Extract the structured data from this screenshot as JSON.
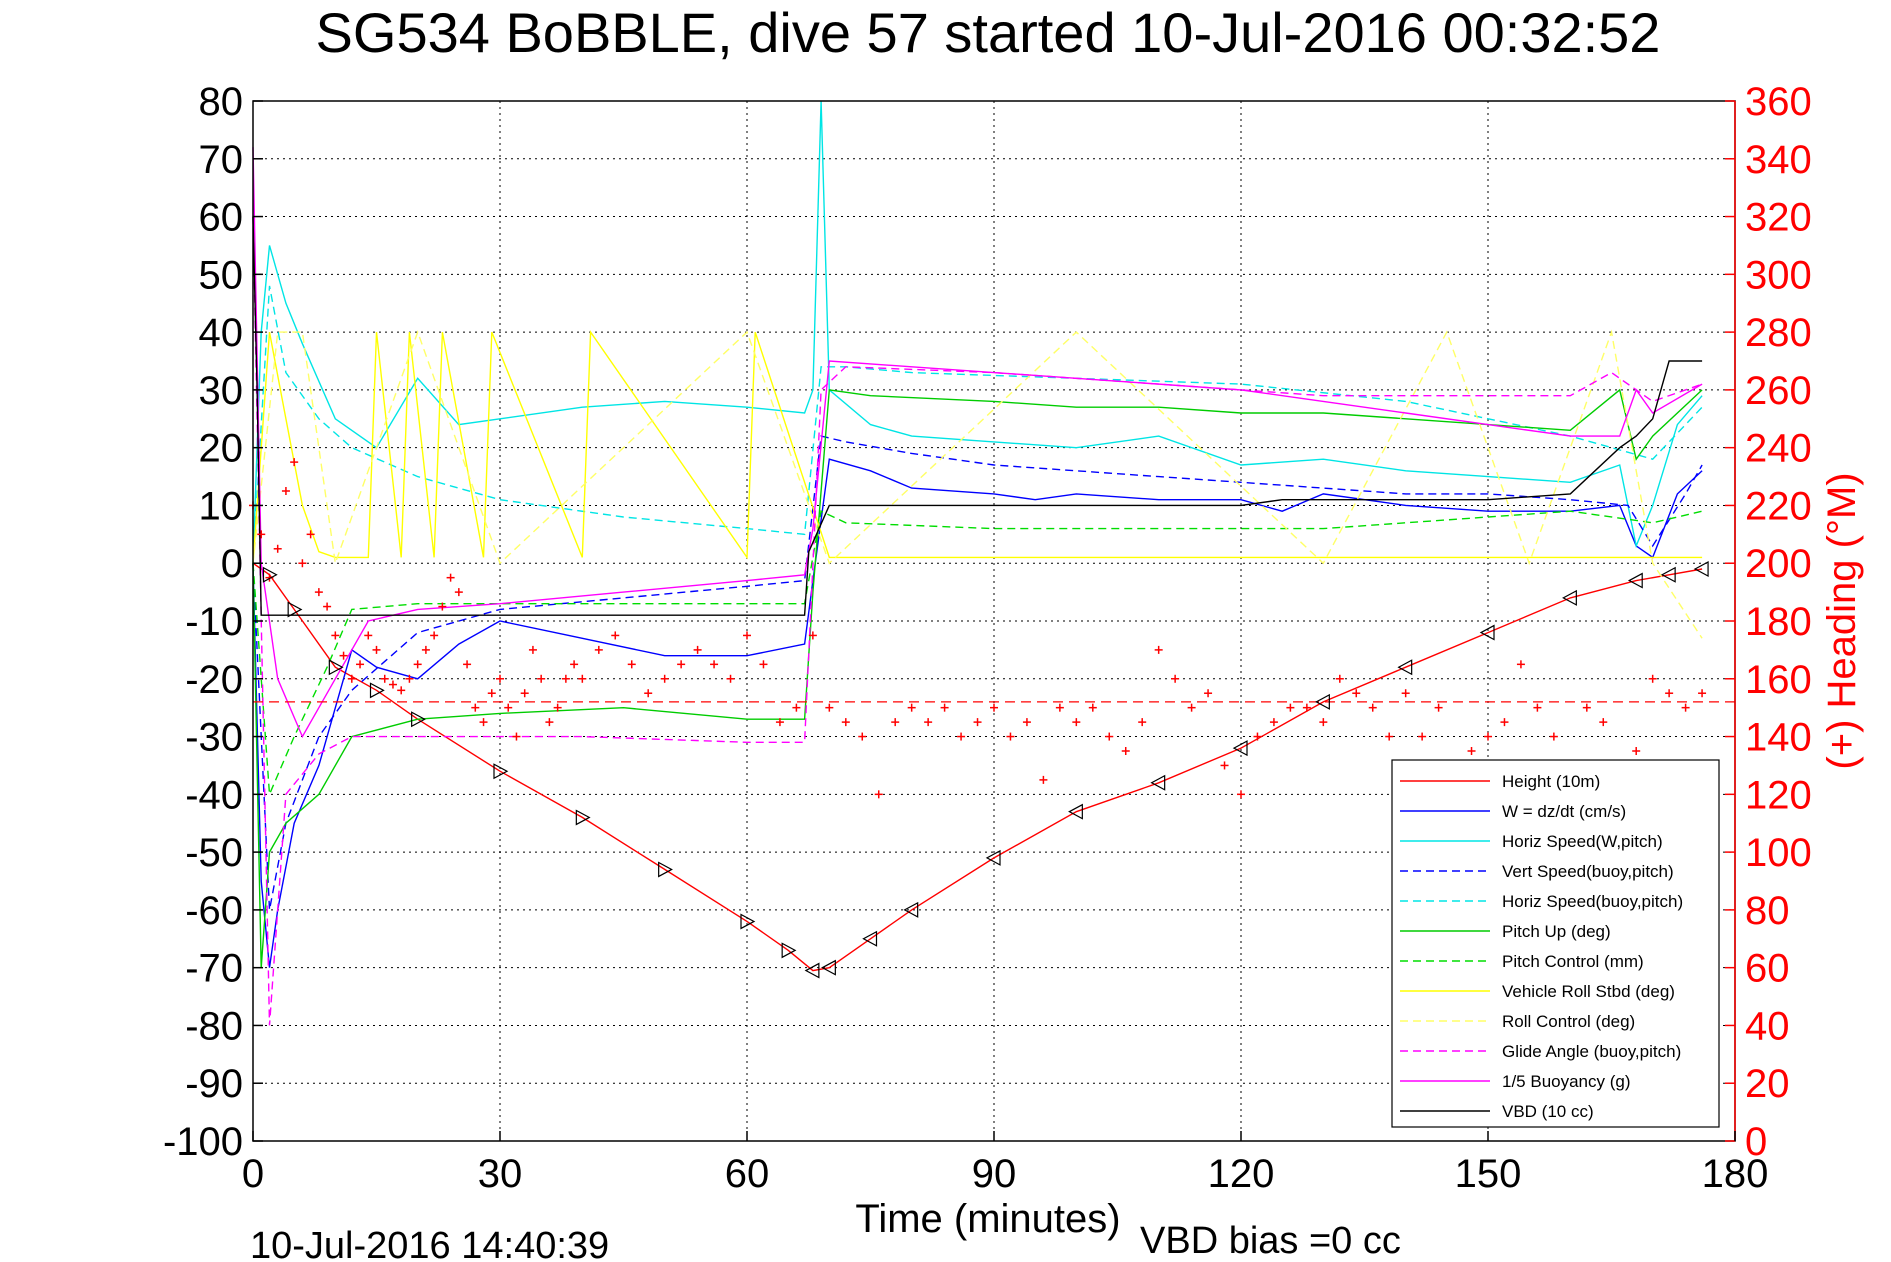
{
  "chart_data": {
    "type": "line",
    "title": "SG534 BoBBLE, dive 57 started 10-Jul-2016 00:32:52",
    "xlabel": "Time (minutes)",
    "ylabel_right": "(+) Heading (°M)",
    "xlim": [
      0,
      180
    ],
    "ylim": [
      -100,
      80
    ],
    "ylim_right": [
      0,
      360
    ],
    "x_ticks": [
      "0",
      "30",
      "60",
      "90",
      "120",
      "150",
      "180"
    ],
    "y_ticks": [
      "80",
      "70",
      "60",
      "50",
      "40",
      "30",
      "20",
      "10",
      "0",
      "-10",
      "-20",
      "-30",
      "-40",
      "-50",
      "-60",
      "-70",
      "-80",
      "-90",
      "-100"
    ],
    "y_ticks_right": [
      "360",
      "340",
      "320",
      "300",
      "280",
      "260",
      "240",
      "220",
      "200",
      "180",
      "160",
      "140",
      "120",
      "100",
      "80",
      "60",
      "40",
      "20",
      "0"
    ],
    "grid": true,
    "legend_position": "bottom-right",
    "footer_left": "10-Jul-2016 14:40:39",
    "footer_right": "VBD bias =0 cc",
    "reference_heading": 152,
    "series": [
      {
        "name": "Height (10m)",
        "color": "#ff0000",
        "dash": "solid",
        "x": [
          0,
          2,
          5,
          10,
          15,
          20,
          30,
          40,
          50,
          60,
          65,
          68,
          70,
          75,
          80,
          90,
          100,
          110,
          120,
          130,
          140,
          150,
          160,
          168,
          172,
          176
        ],
        "y": [
          0,
          -2,
          -8,
          -18,
          -22,
          -27,
          -36,
          -44,
          -53,
          -62,
          -67,
          -70.5,
          -70,
          -65,
          -60,
          -51,
          -43,
          -38,
          -32,
          -24,
          -18,
          -12,
          -6,
          -3,
          -2,
          -1
        ]
      },
      {
        "name": "W = dz/dt (cm/s)",
        "color": "#0000ff",
        "dash": "solid",
        "x": [
          0,
          1,
          2,
          3,
          5,
          8,
          12,
          15,
          20,
          25,
          30,
          40,
          50,
          60,
          67,
          68,
          70,
          75,
          80,
          90,
          95,
          100,
          110,
          120,
          125,
          130,
          140,
          150,
          160,
          166,
          168,
          170,
          173,
          176
        ],
        "y": [
          0,
          -55,
          -70,
          -60,
          -45,
          -35,
          -15,
          -18,
          -20,
          -14,
          -10,
          -13,
          -16,
          -16,
          -14,
          -3,
          18,
          16,
          13,
          12,
          11,
          12,
          11,
          11,
          9,
          12,
          10,
          9,
          9,
          10,
          3,
          1,
          12,
          16
        ]
      },
      {
        "name": "Horiz Speed(W,pitch)",
        "color": "#00e5e5",
        "dash": "solid",
        "x": [
          0,
          1,
          2,
          4,
          6,
          10,
          15,
          20,
          25,
          30,
          40,
          50,
          60,
          67,
          68,
          69,
          70,
          75,
          80,
          90,
          100,
          110,
          120,
          130,
          140,
          150,
          160,
          166,
          168,
          170,
          173,
          176
        ],
        "y": [
          0,
          40,
          55,
          45,
          38,
          25,
          20,
          32,
          24,
          25,
          27,
          28,
          27,
          26,
          30,
          80,
          30,
          24,
          22,
          21,
          20,
          22,
          17,
          18,
          16,
          15,
          14,
          17,
          3,
          10,
          24,
          29
        ]
      },
      {
        "name": "Vert Speed(buoy,pitch)",
        "color": "#0000ff",
        "dash": "dashed",
        "x": [
          0,
          2,
          4,
          8,
          12,
          20,
          30,
          45,
          60,
          67,
          69,
          72,
          80,
          90,
          100,
          110,
          120,
          130,
          140,
          150,
          160,
          167,
          170,
          174,
          176
        ],
        "y": [
          0,
          -60,
          -45,
          -30,
          -22,
          -12,
          -8,
          -6,
          -4,
          -3,
          22,
          21,
          19,
          17,
          16,
          15,
          14,
          13,
          12,
          12,
          11,
          10,
          3,
          12,
          17
        ]
      },
      {
        "name": "Horiz Speed(buoy,pitch)",
        "color": "#00e5e5",
        "dash": "dashed",
        "x": [
          0,
          2,
          4,
          8,
          12,
          20,
          30,
          45,
          60,
          67,
          69,
          72,
          80,
          100,
          120,
          140,
          160,
          170,
          176
        ],
        "y": [
          0,
          48,
          33,
          25,
          20,
          15,
          11,
          8,
          6,
          5,
          34,
          34,
          33,
          32,
          31,
          28,
          22,
          18,
          27
        ]
      },
      {
        "name": "Pitch Up (deg)",
        "color": "#00cc00",
        "dash": "solid",
        "x": [
          0,
          1,
          2,
          4,
          8,
          12,
          20,
          30,
          45,
          60,
          67,
          68,
          70,
          75,
          90,
          100,
          110,
          120,
          130,
          140,
          150,
          160,
          166,
          168,
          170,
          176
        ],
        "y": [
          0,
          -70,
          -50,
          -45,
          -40,
          -30,
          -27,
          -26,
          -25,
          -27,
          -27,
          -5,
          30,
          29,
          28,
          27,
          27,
          26,
          26,
          25,
          24,
          23,
          30,
          18,
          22,
          30
        ]
      },
      {
        "name": "Pitch Control (mm)",
        "color": "#00dd00",
        "dash": "dashed",
        "x": [
          0,
          2,
          5,
          9,
          12,
          20,
          40,
          60,
          67,
          69,
          72,
          90,
          110,
          130,
          150,
          160,
          170,
          176
        ],
        "y": [
          0,
          -40,
          -30,
          -18,
          -8,
          -7,
          -7,
          -7,
          -7,
          9,
          7,
          6,
          6,
          6,
          8,
          9,
          7,
          9
        ]
      },
      {
        "name": "Vehicle Roll Stbd (deg)",
        "color": "#ffff00",
        "dash": "solid",
        "x": [
          0,
          2,
          4,
          6,
          8,
          10,
          14,
          15,
          18,
          19,
          22,
          23,
          28,
          29,
          40,
          41,
          60,
          61,
          70,
          80,
          90,
          100,
          110,
          120,
          140,
          150,
          160,
          170,
          176
        ],
        "y": [
          0,
          40,
          25,
          10,
          2,
          1,
          1,
          40,
          1,
          40,
          1,
          40,
          1,
          40,
          1,
          40,
          1,
          40,
          1,
          1,
          1,
          1,
          1,
          1,
          1,
          1,
          1,
          1,
          1
        ]
      },
      {
        "name": "Roll Control (deg)",
        "color": "#ffff66",
        "dash": "dashed",
        "x": [
          0,
          3,
          6,
          10,
          20,
          30,
          60,
          70,
          100,
          130,
          145,
          155,
          165,
          170,
          176
        ],
        "y": [
          0,
          40,
          40,
          0,
          40,
          0,
          40,
          0,
          40,
          0,
          40,
          0,
          40,
          0,
          -13
        ]
      },
      {
        "name": "Glide Angle (buoy,pitch)",
        "color": "#ff00ff",
        "dash": "dashed",
        "x": [
          0,
          2,
          4,
          8,
          12,
          20,
          40,
          60,
          67,
          69,
          72,
          90,
          110,
          130,
          150,
          160,
          165,
          170,
          176
        ],
        "y": [
          60,
          -80,
          -40,
          -33,
          -30,
          -30,
          -30,
          -31,
          -31,
          30,
          34,
          33,
          31,
          29,
          29,
          29,
          33,
          28,
          31
        ]
      },
      {
        "name": "1/5 Buoyancy (g)",
        "color": "#ff00ff",
        "dash": "solid",
        "x": [
          0,
          1,
          3,
          6,
          10,
          14,
          20,
          30,
          45,
          60,
          67,
          68,
          70,
          80,
          100,
          120,
          130,
          140,
          150,
          160,
          166,
          168,
          170,
          176
        ],
        "y": [
          72,
          0,
          -20,
          -30,
          -20,
          -10,
          -8,
          -7,
          -5,
          -3,
          -2,
          6,
          35,
          34,
          32,
          30,
          28,
          26,
          24,
          22,
          22,
          30,
          26,
          31
        ]
      },
      {
        "name": "VBD (10 cc)",
        "color": "#000000",
        "dash": "solid",
        "x": [
          0,
          0.5,
          1,
          2,
          10,
          40,
          60,
          67,
          67.5,
          70,
          100,
          120,
          125,
          140,
          150,
          160,
          166,
          168,
          170,
          172,
          176
        ],
        "y": [
          60,
          30,
          -9,
          -9,
          -9,
          -9,
          -9,
          -9,
          2,
          10,
          10,
          10,
          11,
          11,
          11,
          12,
          20,
          22,
          25,
          35,
          35
        ]
      }
    ],
    "heading_track": {
      "name": "(+) Heading",
      "color": "#ff0000",
      "x": [
        0,
        1,
        2,
        3,
        4,
        5,
        6,
        7,
        8,
        9,
        10,
        11,
        12,
        13,
        14,
        15,
        16,
        17,
        18,
        19,
        20,
        21,
        22,
        23,
        24,
        25,
        26,
        27,
        28,
        29,
        30,
        31,
        32,
        33,
        34,
        35,
        36,
        37,
        38,
        39,
        40,
        42,
        44,
        46,
        48,
        50,
        52,
        54,
        56,
        58,
        60,
        62,
        64,
        66,
        68,
        70,
        72,
        74,
        76,
        78,
        80,
        82,
        84,
        86,
        88,
        90,
        92,
        94,
        96,
        98,
        100,
        102,
        104,
        106,
        108,
        110,
        112,
        114,
        116,
        118,
        120,
        122,
        124,
        126,
        128,
        130,
        132,
        134,
        136,
        138,
        140,
        142,
        144,
        146,
        148,
        150,
        152,
        154,
        156,
        158,
        160,
        162,
        164,
        166,
        168,
        170,
        172,
        174,
        176
      ],
      "y": [
        220,
        210,
        195,
        205,
        225,
        235,
        200,
        210,
        190,
        185,
        175,
        168,
        160,
        165,
        175,
        170,
        160,
        158,
        156,
        160,
        165,
        170,
        175,
        185,
        195,
        190,
        165,
        150,
        145,
        155,
        160,
        150,
        140,
        155,
        170,
        160,
        145,
        150,
        160,
        165,
        160,
        170,
        175,
        165,
        155,
        160,
        165,
        170,
        165,
        160,
        175,
        165,
        145,
        150,
        175,
        150,
        145,
        140,
        120,
        145,
        150,
        145,
        150,
        140,
        145,
        150,
        140,
        145,
        125,
        150,
        145,
        150,
        140,
        135,
        145,
        170,
        160,
        150,
        155,
        130,
        120,
        140,
        145,
        150,
        150,
        145,
        160,
        155,
        150,
        140,
        155,
        140,
        150,
        130,
        135,
        140,
        145,
        165,
        150,
        140,
        130,
        150,
        145,
        130,
        135,
        160,
        155,
        150,
        155
      ]
    }
  }
}
